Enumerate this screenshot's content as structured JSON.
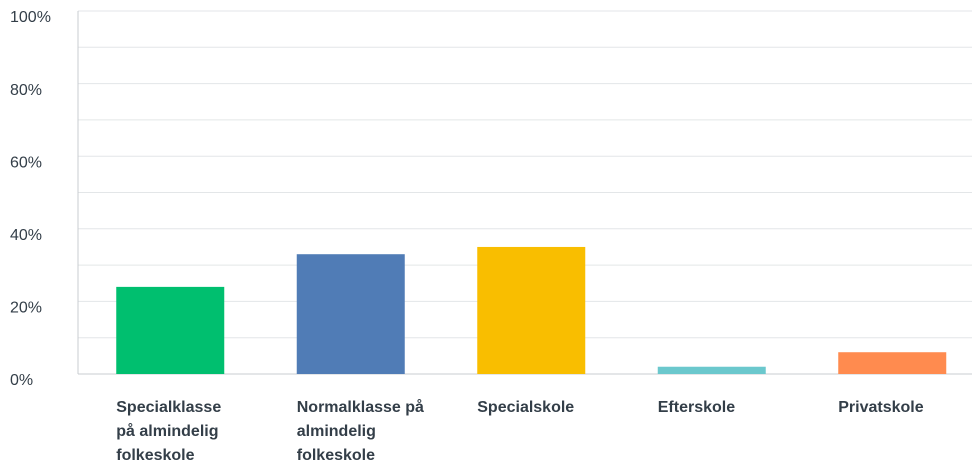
{
  "chart_data": {
    "type": "bar",
    "categories": [
      "Specialklasse på almindelig folkeskole",
      "Normalklasse på almindelig folkeskole",
      "Specialskole",
      "Efterskole",
      "Privatskole"
    ],
    "values": [
      24,
      33,
      35,
      2,
      6
    ],
    "colors": [
      "#00bf6f",
      "#507cb6",
      "#f9be00",
      "#6bc8cd",
      "#ff8b4f"
    ],
    "ylim": [
      0,
      100
    ],
    "yticks": [
      {
        "value": 0,
        "label": "0%"
      },
      {
        "value": 20,
        "label": "20%"
      },
      {
        "value": 40,
        "label": "40%"
      },
      {
        "value": 60,
        "label": "60%"
      },
      {
        "value": 80,
        "label": "80%"
      },
      {
        "value": 100,
        "label": "100%"
      }
    ],
    "minor_yticks": [
      10,
      30,
      50,
      70,
      90
    ],
    "grid": true
  }
}
